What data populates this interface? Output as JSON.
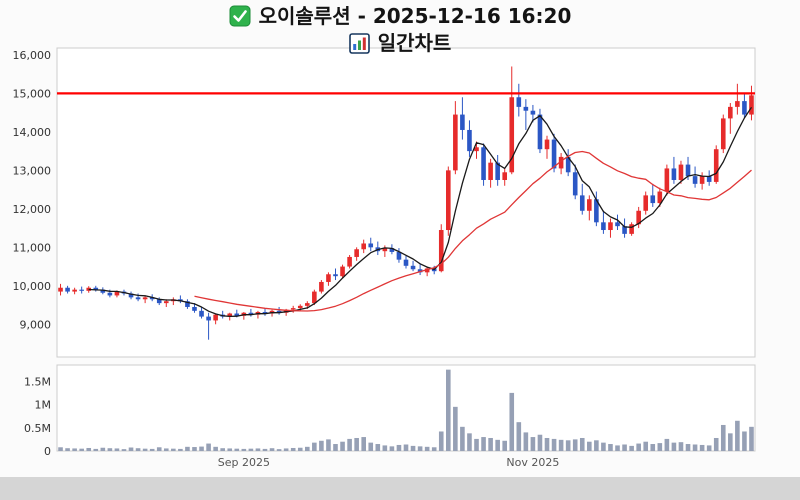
{
  "header": {
    "title": "오이솔루션 - 2025-12-16 16:20",
    "subtitle": "일간차트"
  },
  "chart_data": {
    "type": "candlestick",
    "title": "오이솔루션 일간차트 (daily candlestick with volume)",
    "price_axis": {
      "min": 8150,
      "max": 16180,
      "ticks": [
        16000,
        15000,
        14000,
        13000,
        12000,
        11000,
        10000,
        9000
      ]
    },
    "volume_axis": {
      "min": 0,
      "max": 1850000,
      "ticks": [
        {
          "value": 1500000,
          "label": "1.5M"
        },
        {
          "value": 1000000,
          "label": "1M"
        },
        {
          "value": 500000,
          "label": "0.5M"
        },
        {
          "value": 0,
          "label": "0"
        }
      ]
    },
    "x_ticks": [
      {
        "index": 26,
        "label": "Sep 2025"
      },
      {
        "index": 67,
        "label": "Nov 2025"
      }
    ],
    "resistance_line": {
      "price": 15000,
      "color": "#ff0000"
    },
    "ma": [
      {
        "period": 5,
        "color": "#1a1a1a"
      },
      {
        "period": 20,
        "color": "#e03636"
      }
    ],
    "colors": {
      "up": "#e62b2b",
      "down": "#2b57c5",
      "volume": "#96a0b5"
    },
    "candles": [
      [
        9850,
        10050,
        9750,
        9950
      ],
      [
        9950,
        10000,
        9800,
        9850
      ],
      [
        9850,
        9950,
        9780,
        9900
      ],
      [
        9900,
        9980,
        9800,
        9870
      ],
      [
        9870,
        9990,
        9820,
        9950
      ],
      [
        9950,
        10000,
        9850,
        9900
      ],
      [
        9900,
        9960,
        9780,
        9820
      ],
      [
        9820,
        9900,
        9700,
        9750
      ],
      [
        9750,
        9880,
        9700,
        9850
      ],
      [
        9850,
        9900,
        9750,
        9800
      ],
      [
        9800,
        9850,
        9650,
        9700
      ],
      [
        9700,
        9800,
        9600,
        9650
      ],
      [
        9650,
        9750,
        9550,
        9700
      ],
      [
        9700,
        9780,
        9600,
        9650
      ],
      [
        9650,
        9700,
        9500,
        9550
      ],
      [
        9550,
        9650,
        9450,
        9600
      ],
      [
        9600,
        9700,
        9500,
        9650
      ],
      [
        9650,
        9750,
        9550,
        9600
      ],
      [
        9600,
        9650,
        9400,
        9450
      ],
      [
        9450,
        9550,
        9300,
        9350
      ],
      [
        9350,
        9450,
        9150,
        9200
      ],
      [
        9200,
        9300,
        8600,
        9100
      ],
      [
        9100,
        9280,
        9000,
        9250
      ],
      [
        9250,
        9350,
        9150,
        9200
      ],
      [
        9200,
        9300,
        9100,
        9280
      ],
      [
        9280,
        9380,
        9180,
        9220
      ],
      [
        9220,
        9320,
        9120,
        9300
      ],
      [
        9300,
        9400,
        9200,
        9250
      ],
      [
        9250,
        9350,
        9150,
        9320
      ],
      [
        9320,
        9420,
        9220,
        9280
      ],
      [
        9280,
        9380,
        9200,
        9350
      ],
      [
        9350,
        9450,
        9250,
        9300
      ],
      [
        9300,
        9400,
        9220,
        9380
      ],
      [
        9380,
        9480,
        9300,
        9420
      ],
      [
        9420,
        9520,
        9350,
        9480
      ],
      [
        9480,
        9600,
        9400,
        9550
      ],
      [
        9550,
        9900,
        9500,
        9850
      ],
      [
        9850,
        10150,
        9800,
        10100
      ],
      [
        10100,
        10350,
        10000,
        10300
      ],
      [
        10300,
        10450,
        10150,
        10250
      ],
      [
        10250,
        10550,
        10200,
        10500
      ],
      [
        10500,
        10800,
        10450,
        10750
      ],
      [
        10750,
        11000,
        10650,
        10950
      ],
      [
        10950,
        11200,
        10850,
        11100
      ],
      [
        11100,
        11250,
        10900,
        11000
      ],
      [
        11000,
        11150,
        10800,
        10900
      ],
      [
        10900,
        11050,
        10750,
        10980
      ],
      [
        10980,
        11080,
        10820,
        10880
      ],
      [
        10880,
        10980,
        10600,
        10680
      ],
      [
        10680,
        10780,
        10450,
        10520
      ],
      [
        10520,
        10650,
        10380,
        10430
      ],
      [
        10430,
        10560,
        10280,
        10350
      ],
      [
        10350,
        10500,
        10250,
        10450
      ],
      [
        10450,
        10520,
        10300,
        10380
      ],
      [
        10380,
        11600,
        10350,
        11450
      ],
      [
        11450,
        13100,
        11300,
        13000
      ],
      [
        13000,
        14800,
        12900,
        14450
      ],
      [
        14450,
        14900,
        13800,
        14050
      ],
      [
        14050,
        14300,
        13350,
        13500
      ],
      [
        13500,
        13750,
        13300,
        13600
      ],
      [
        13600,
        13700,
        12600,
        12750
      ],
      [
        12750,
        13300,
        12550,
        13200
      ],
      [
        13200,
        13400,
        12600,
        12750
      ],
      [
        12750,
        13050,
        12600,
        12950
      ],
      [
        12950,
        15700,
        12900,
        14900
      ],
      [
        14900,
        15250,
        14400,
        14650
      ],
      [
        14650,
        14850,
        14050,
        14550
      ],
      [
        14550,
        14700,
        14250,
        14450
      ],
      [
        14450,
        14600,
        13450,
        13550
      ],
      [
        13550,
        13900,
        13300,
        13800
      ],
      [
        13800,
        13950,
        12950,
        13050
      ],
      [
        13050,
        13450,
        12900,
        13350
      ],
      [
        13350,
        13550,
        12850,
        12950
      ],
      [
        12950,
        13150,
        12250,
        12350
      ],
      [
        12350,
        12650,
        11850,
        11950
      ],
      [
        11950,
        12350,
        11700,
        12250
      ],
      [
        12250,
        12450,
        11550,
        11650
      ],
      [
        11650,
        11950,
        11350,
        11450
      ],
      [
        11450,
        11750,
        11250,
        11650
      ],
      [
        11650,
        11850,
        11450,
        11550
      ],
      [
        11550,
        11750,
        11250,
        11350
      ],
      [
        11350,
        11650,
        11300,
        11600
      ],
      [
        11600,
        12050,
        11500,
        11950
      ],
      [
        11950,
        12450,
        11850,
        12350
      ],
      [
        12350,
        12650,
        12050,
        12150
      ],
      [
        12150,
        12550,
        12050,
        12450
      ],
      [
        12450,
        13150,
        12350,
        13050
      ],
      [
        13050,
        13350,
        12650,
        12750
      ],
      [
        12750,
        13250,
        12650,
        13150
      ],
      [
        13150,
        13350,
        12750,
        12850
      ],
      [
        12850,
        13100,
        12550,
        12650
      ],
      [
        12650,
        12950,
        12500,
        12850
      ],
      [
        12850,
        13000,
        12600,
        12700
      ],
      [
        12700,
        13650,
        12650,
        13550
      ],
      [
        13550,
        14450,
        13450,
        14350
      ],
      [
        14350,
        14750,
        13950,
        14650
      ],
      [
        14650,
        15250,
        14450,
        14800
      ],
      [
        14800,
        15000,
        14350,
        14450
      ],
      [
        14450,
        15200,
        14300,
        14950
      ]
    ],
    "volumes": [
      80000,
      60000,
      55000,
      50000,
      65000,
      45000,
      70000,
      60000,
      55000,
      40000,
      75000,
      60000,
      50000,
      45000,
      80000,
      55000,
      50000,
      45000,
      90000,
      85000,
      95000,
      160000,
      90000,
      60000,
      55000,
      50000,
      45000,
      50000,
      55000,
      45000,
      60000,
      40000,
      55000,
      65000,
      70000,
      90000,
      180000,
      220000,
      250000,
      150000,
      200000,
      260000,
      280000,
      300000,
      180000,
      150000,
      120000,
      100000,
      130000,
      140000,
      110000,
      100000,
      90000,
      80000,
      420000,
      1750000,
      950000,
      520000,
      380000,
      260000,
      300000,
      280000,
      240000,
      220000,
      1250000,
      620000,
      400000,
      300000,
      350000,
      280000,
      260000,
      240000,
      230000,
      250000,
      280000,
      200000,
      230000,
      180000,
      150000,
      120000,
      140000,
      110000,
      160000,
      200000,
      150000,
      170000,
      260000,
      180000,
      190000,
      150000,
      140000,
      130000,
      120000,
      280000,
      560000,
      380000,
      650000,
      420000,
      520000
    ]
  }
}
